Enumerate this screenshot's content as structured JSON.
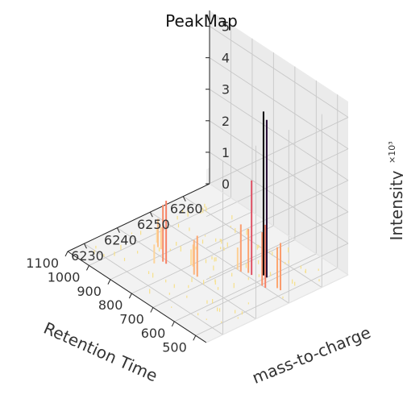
{
  "chart_data": {
    "type": "3d-stem",
    "title": "PeakMap",
    "xlabel": "Retention Time",
    "ylabel": "mass-to-charge",
    "zlabel": "Intensity",
    "z_multiplier_label": "×10³",
    "xlim": [
      450,
      1100
    ],
    "ylim": [
      6225,
      6268
    ],
    "zlim": [
      0,
      5500
    ],
    "x_ticks": [
      500,
      600,
      700,
      800,
      900,
      1000,
      1100
    ],
    "y_ticks": [
      6230,
      6240,
      6250,
      6260
    ],
    "z_ticks": [
      0,
      1,
      2,
      3,
      4,
      5
    ],
    "grid": true,
    "colormap": "magma_r (yellow = low, black = high)",
    "peaks": [
      {
        "rt": 520,
        "mz": 6252,
        "intensity": 1500
      },
      {
        "rt": 535,
        "mz": 6252,
        "intensity": 1300
      },
      {
        "rt": 560,
        "mz": 6250,
        "intensity": 2000
      },
      {
        "rt": 575,
        "mz": 6250,
        "intensity": 1700
      },
      {
        "rt": 600,
        "mz": 6253,
        "intensity": 5000
      },
      {
        "rt": 615,
        "mz": 6253,
        "intensity": 5200
      },
      {
        "rt": 640,
        "mz": 6251,
        "intensity": 3000
      },
      {
        "rt": 655,
        "mz": 6251,
        "intensity": 1400
      },
      {
        "rt": 675,
        "mz": 6250,
        "intensity": 1500
      },
      {
        "rt": 690,
        "mz": 6250,
        "intensity": 700
      },
      {
        "rt": 740,
        "mz": 6241,
        "intensity": 1300
      },
      {
        "rt": 755,
        "mz": 6241,
        "intensity": 1100
      },
      {
        "rt": 790,
        "mz": 6243,
        "intensity": 700
      },
      {
        "rt": 800,
        "mz": 6243,
        "intensity": 500
      },
      {
        "rt": 855,
        "mz": 6239,
        "intensity": 2000
      },
      {
        "rt": 870,
        "mz": 6239,
        "intensity": 1800
      },
      {
        "rt": 880,
        "mz": 6237,
        "intensity": 600
      },
      {
        "rt": 925,
        "mz": 6242,
        "intensity": 700
      },
      {
        "rt": 940,
        "mz": 6242,
        "intensity": 900
      },
      {
        "rt": 960,
        "mz": 6243,
        "intensity": 450
      }
    ],
    "background_peaks": {
      "rt_range": [
        480,
        1060
      ],
      "mz_range": [
        6228,
        6264
      ],
      "intensity_range": [
        40,
        160
      ],
      "count": 100
    }
  }
}
